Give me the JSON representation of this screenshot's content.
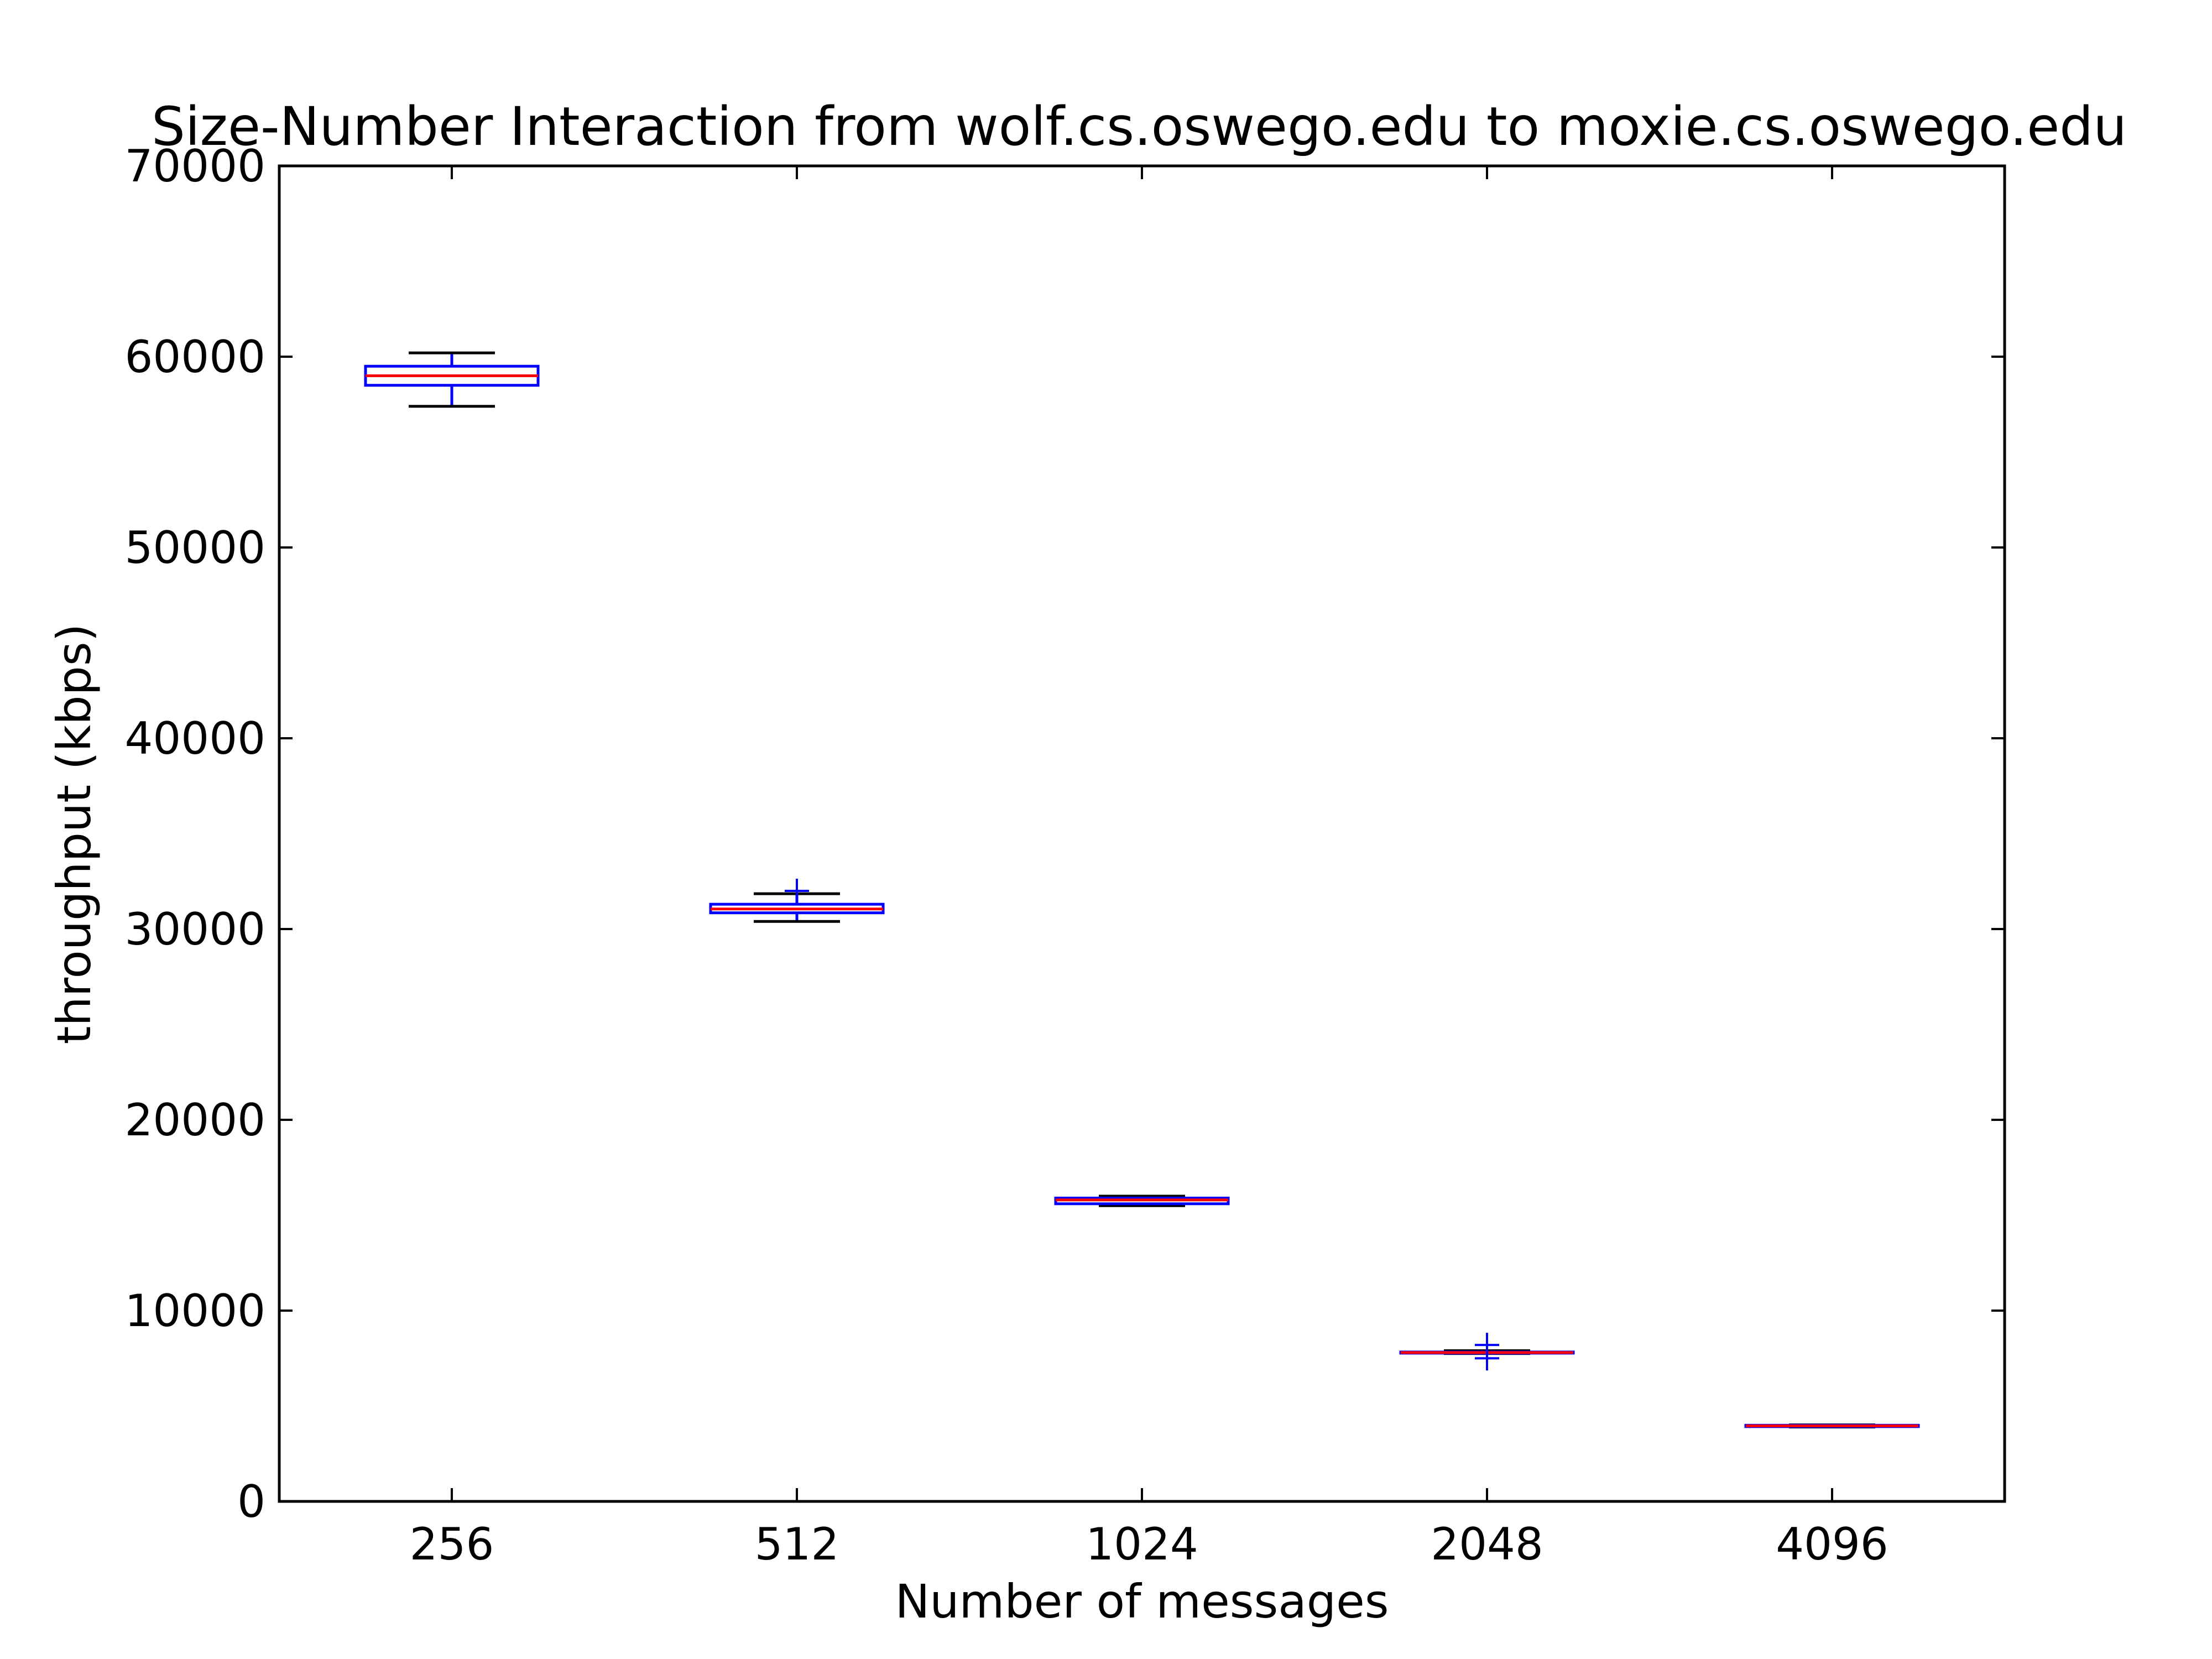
{
  "chart_data": {
    "type": "boxplot",
    "title": "Size-Number Interaction from wolf.cs.oswego.edu to moxie.cs.oswego.edu",
    "xlabel": "Number of messages",
    "ylabel": "throughput (kbps)",
    "categories": [
      "256",
      "512",
      "1024",
      "2048",
      "4096"
    ],
    "ylim": [
      0,
      70000
    ],
    "yticks": [
      "0",
      "10000",
      "20000",
      "30000",
      "40000",
      "50000",
      "60000",
      "70000"
    ],
    "grid": false,
    "boxes": [
      {
        "category": "256",
        "whisker_low": 57400,
        "q1": 58500,
        "median": 59000,
        "q3": 59500,
        "whisker_high": 60200,
        "outliers": []
      },
      {
        "category": "512",
        "whisker_low": 30400,
        "q1": 30850,
        "median": 31050,
        "q3": 31300,
        "whisker_high": 31850,
        "outliers": [
          32000
        ]
      },
      {
        "category": "1024",
        "whisker_low": 15500,
        "q1": 15600,
        "median": 15800,
        "q3": 15900,
        "whisker_high": 16000,
        "outliers": []
      },
      {
        "category": "2048",
        "whisker_low": 7750,
        "q1": 7780,
        "median": 7800,
        "q3": 7830,
        "whisker_high": 7900,
        "outliers": [
          8200,
          7500
        ]
      },
      {
        "category": "4096",
        "whisker_low": 3900,
        "q1": 3920,
        "median": 3960,
        "q3": 3990,
        "whisker_high": 4010,
        "outliers": []
      }
    ],
    "colors": {
      "box": "#0000ff",
      "median": "#ff0000",
      "whisker": "#0000ff",
      "cap": "#000000",
      "flier": "#0000ff",
      "axes": "#000000"
    }
  }
}
